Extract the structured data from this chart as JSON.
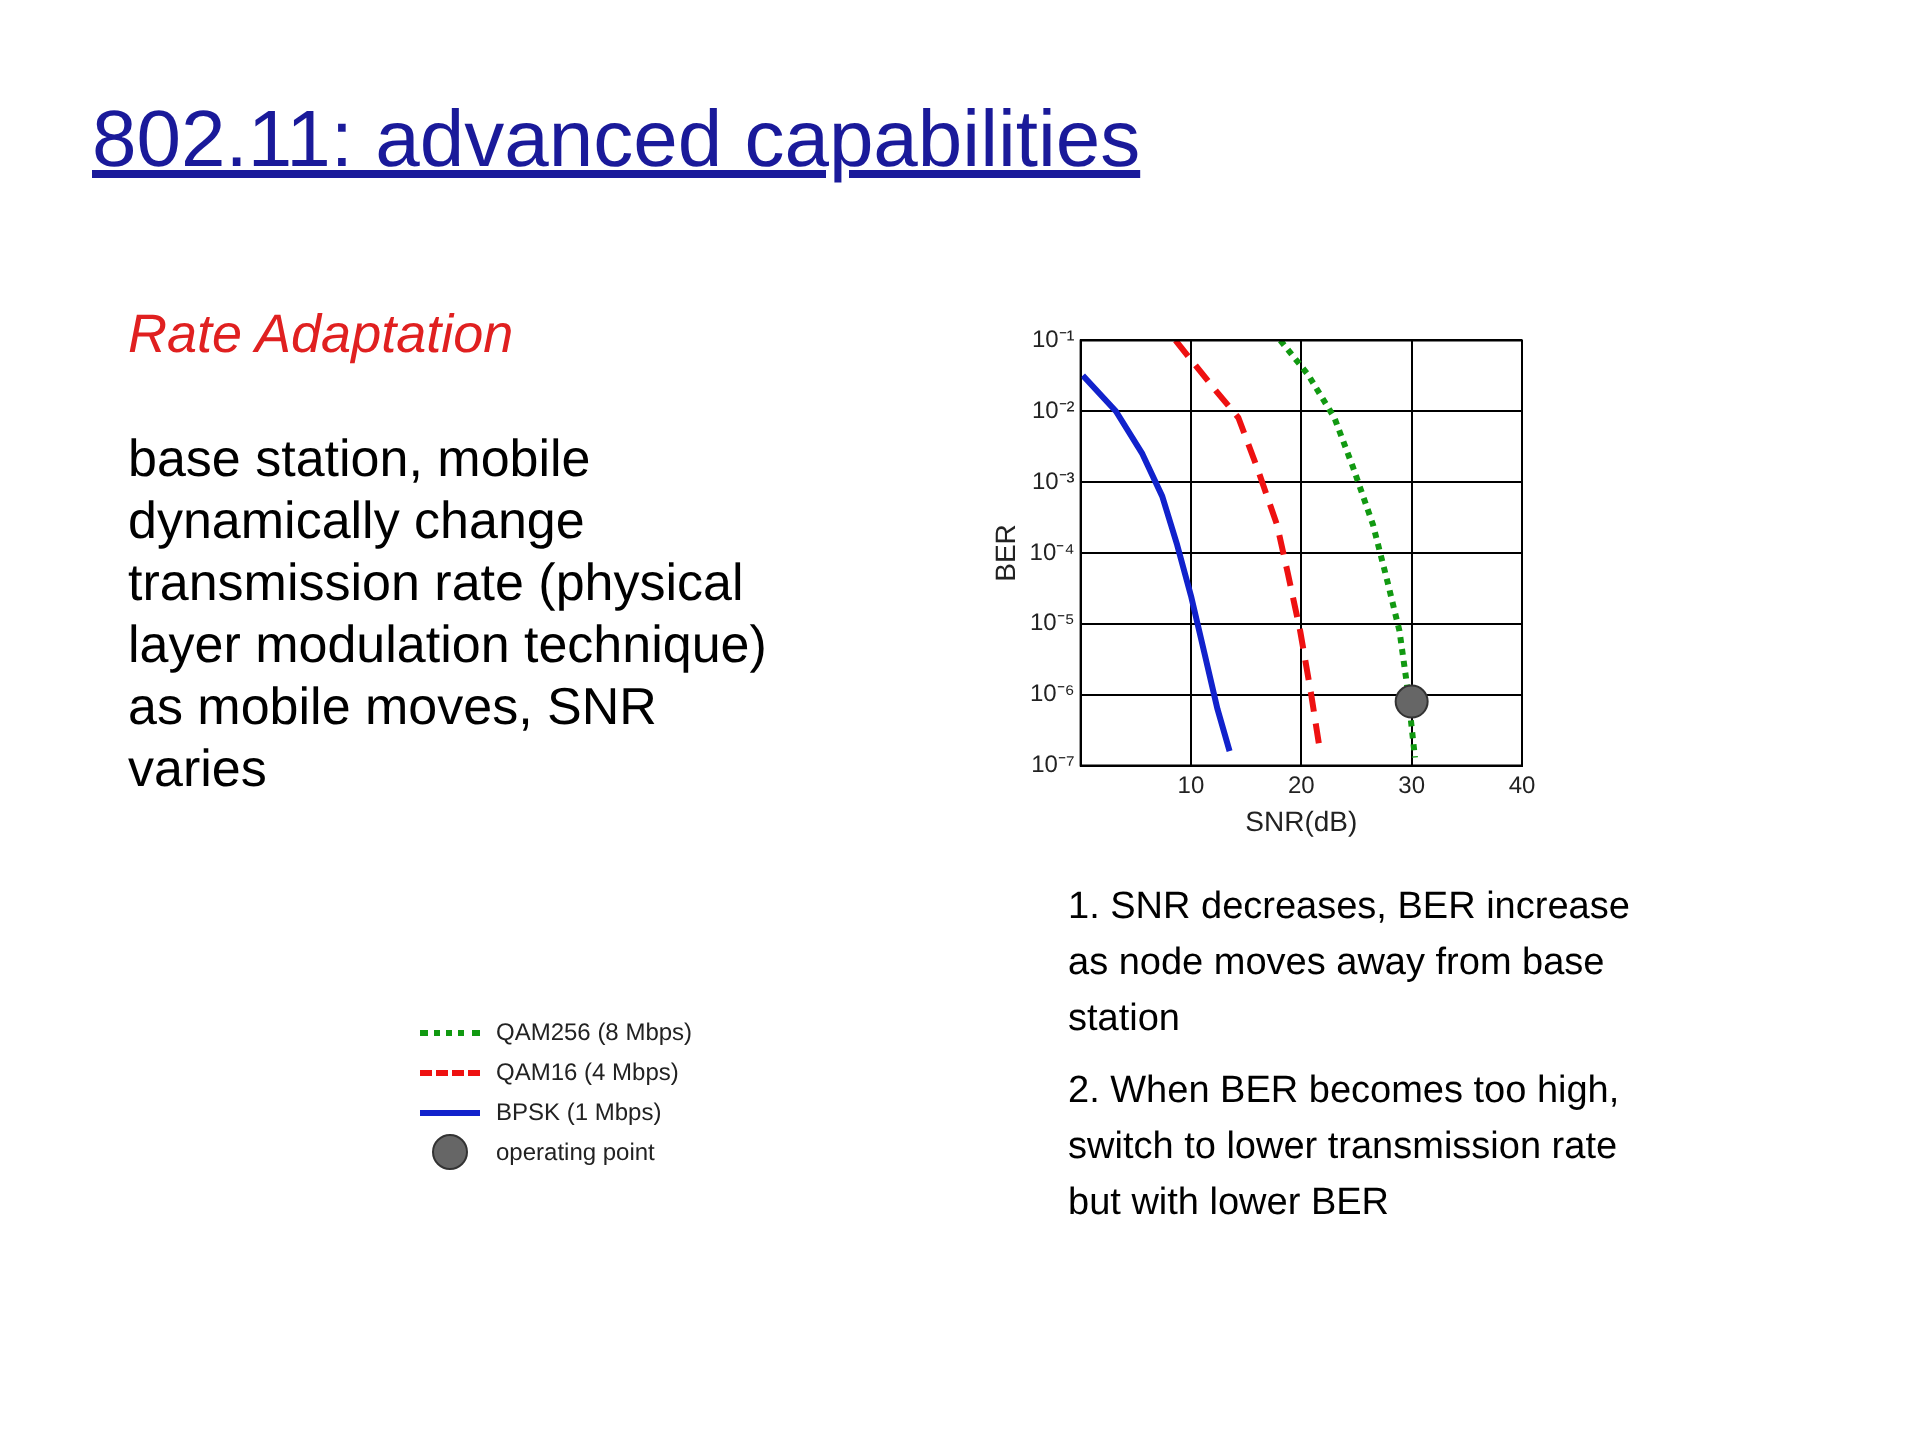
{
  "chart_data": {
    "type": "line",
    "title": "802.11: advanced capabilities",
    "subtitle": "Rate Adaptation",
    "xlabel": "SNR(dB)",
    "ylabel": "BER",
    "log": "y",
    "grid": true,
    "legend": "bottom left",
    "xlim": [
      0,
      40
    ],
    "xticks": [
      10,
      20,
      30,
      40
    ],
    "ylim": [
      1e-07,
      0.1
    ],
    "yticks": [
      {
        "value": 1e-07,
        "label": "10⁻⁷"
      },
      {
        "value": 1e-06,
        "label": "10⁻⁶"
      },
      {
        "value": 1e-05,
        "label": "10⁻⁵"
      },
      {
        "value": 0.0001,
        "label": "10⁻⁴"
      },
      {
        "value": 0.001,
        "label": "10⁻³"
      },
      {
        "value": 0.01,
        "label": "10⁻²"
      },
      {
        "value": 0.1,
        "label": "10⁻¹"
      }
    ],
    "series": [
      {
        "name": "QAM256 (8 Mbps)",
        "type": "line",
        "color": "#119911",
        "line_style": "dotted",
        "marker": "none",
        "x": [
          18.1,
          20.6,
          23.0,
          24.7,
          26.5,
          27.8,
          28.9,
          29.6,
          30.3
        ],
        "values": [
          0.1,
          0.033,
          0.0081,
          0.0016,
          0.00025,
          4e-05,
          7.9e-06,
          1.3e-06,
          1.3e-07
        ]
      },
      {
        "name": "QAM16 (4 Mbps)",
        "type": "line",
        "color": "#ee1111",
        "line_style": "dashed",
        "marker": "none",
        "x": [
          8.6,
          12.2,
          14.3,
          16.0,
          17.8,
          18.8,
          19.9,
          20.9,
          21.6
        ],
        "values": [
          0.1,
          0.02,
          0.0081,
          0.0016,
          0.00025,
          5e-05,
          7.9e-06,
          1e-06,
          2e-07
        ]
      },
      {
        "name": "BPSK (1 Mbps)",
        "type": "line",
        "color": "#1122cc",
        "line_style": "solid",
        "marker": "none",
        "x": [
          0.2,
          3.2,
          5.6,
          7.4,
          8.75,
          10,
          11.2,
          12.4,
          13.5
        ],
        "values": [
          0.032,
          0.01,
          0.0025,
          0.00063,
          0.00013,
          2.5e-05,
          4e-06,
          6.3e-07,
          1.6e-07
        ]
      },
      {
        "name": "operating point",
        "type": "scatter",
        "color": "#666666",
        "marker": "circle",
        "x": [
          30
        ],
        "values": [
          8e-07
        ]
      }
    ],
    "annotations": [
      "base station, mobile dynamically change transmission rate (physical layer modulation technique) as mobile moves, SNR varies",
      "1. SNR decreases, BER increase as node moves away from base station",
      "2. When BER becomes too high, switch to lower transmission rate but with lower BER"
    ]
  }
}
